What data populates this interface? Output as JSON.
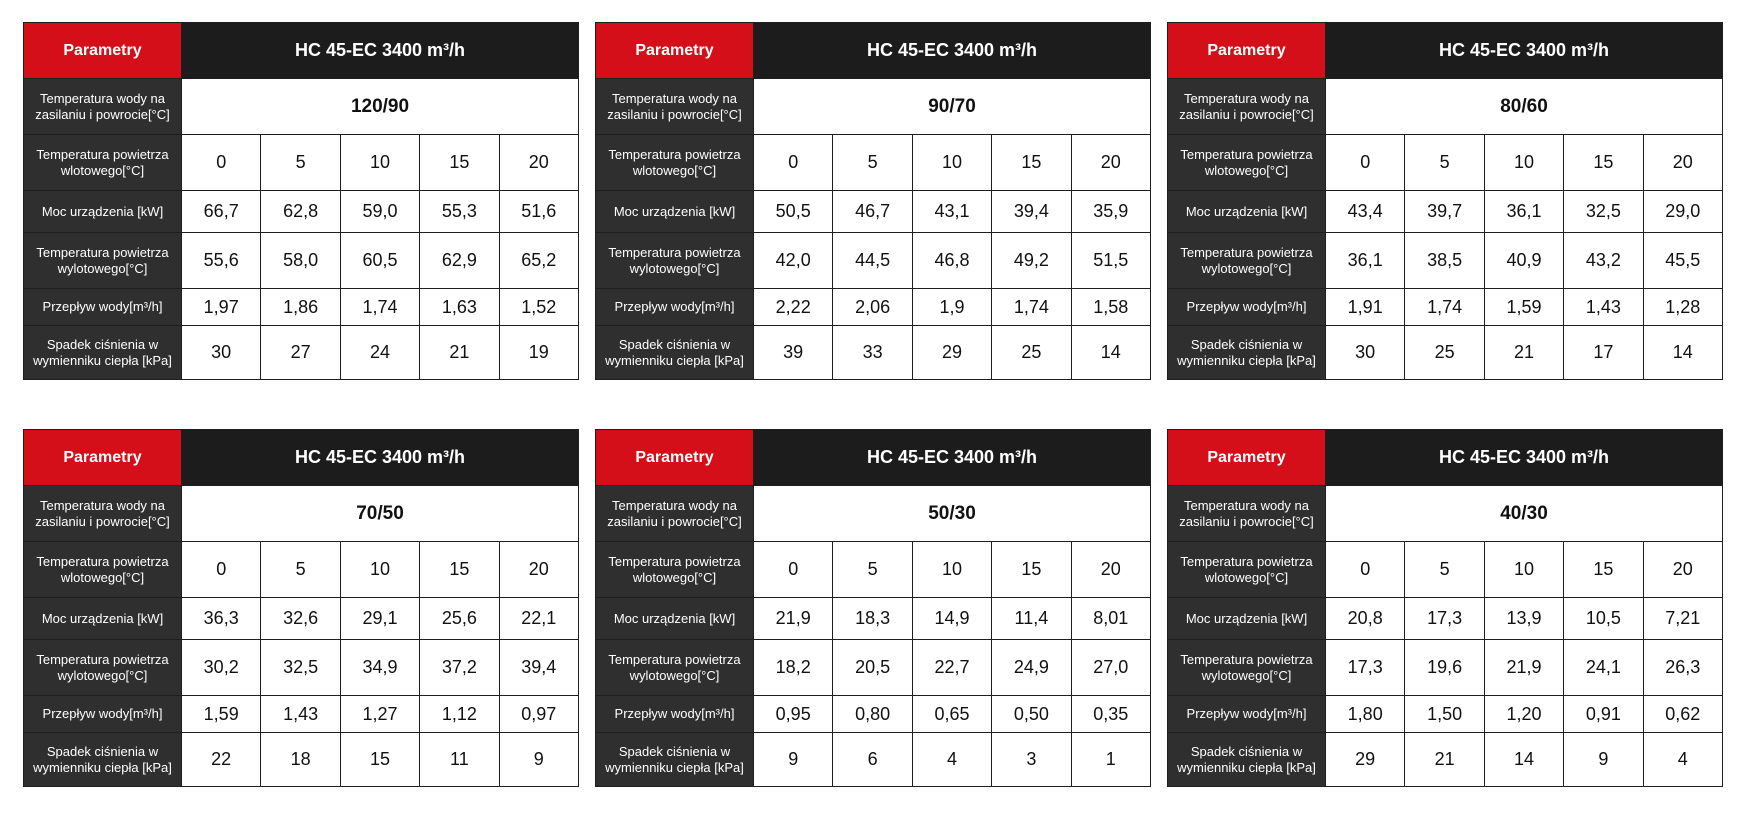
{
  "labels": {
    "params": "Parametry",
    "supply": "Temperatura wody na zasilaniu i powrocie[°C]",
    "inlet": "Temperatura powietrza wlotowego[°C]",
    "power": "Moc urządzenia [kW]",
    "outlet": "Temperatura powietrza wylotowego[°C]",
    "flow": "Przepływ wody[m³/h]",
    "pressure": "Spadek ciśnienia w wymienniku ciepła [kPa]"
  },
  "model": "HC 45-EC 3400 m³/h",
  "tables": [
    {
      "supply": "120/90",
      "inlet": [
        "0",
        "5",
        "10",
        "15",
        "20"
      ],
      "power": [
        "66,7",
        "62,8",
        "59,0",
        "55,3",
        "51,6"
      ],
      "outlet": [
        "55,6",
        "58,0",
        "60,5",
        "62,9",
        "65,2"
      ],
      "flow": [
        "1,97",
        "1,86",
        "1,74",
        "1,63",
        "1,52"
      ],
      "pressure": [
        "30",
        "27",
        "24",
        "21",
        "19"
      ]
    },
    {
      "supply": "90/70",
      "inlet": [
        "0",
        "5",
        "10",
        "15",
        "20"
      ],
      "power": [
        "50,5",
        "46,7",
        "43,1",
        "39,4",
        "35,9"
      ],
      "outlet": [
        "42,0",
        "44,5",
        "46,8",
        "49,2",
        "51,5"
      ],
      "flow": [
        "2,22",
        "2,06",
        "1,9",
        "1,74",
        "1,58"
      ],
      "pressure": [
        "39",
        "33",
        "29",
        "25",
        "14"
      ]
    },
    {
      "supply": "80/60",
      "inlet": [
        "0",
        "5",
        "10",
        "15",
        "20"
      ],
      "power": [
        "43,4",
        "39,7",
        "36,1",
        "32,5",
        "29,0"
      ],
      "outlet": [
        "36,1",
        "38,5",
        "40,9",
        "43,2",
        "45,5"
      ],
      "flow": [
        "1,91",
        "1,74",
        "1,59",
        "1,43",
        "1,28"
      ],
      "pressure": [
        "30",
        "25",
        "21",
        "17",
        "14"
      ]
    },
    {
      "supply": "70/50",
      "inlet": [
        "0",
        "5",
        "10",
        "15",
        "20"
      ],
      "power": [
        "36,3",
        "32,6",
        "29,1",
        "25,6",
        "22,1"
      ],
      "outlet": [
        "30,2",
        "32,5",
        "34,9",
        "37,2",
        "39,4"
      ],
      "flow": [
        "1,59",
        "1,43",
        "1,27",
        "1,12",
        "0,97"
      ],
      "pressure": [
        "22",
        "18",
        "15",
        "11",
        "9"
      ]
    },
    {
      "supply": "50/30",
      "inlet": [
        "0",
        "5",
        "10",
        "15",
        "20"
      ],
      "power": [
        "21,9",
        "18,3",
        "14,9",
        "11,4",
        "8,01"
      ],
      "outlet": [
        "18,2",
        "20,5",
        "22,7",
        "24,9",
        "27,0"
      ],
      "flow": [
        "0,95",
        "0,80",
        "0,65",
        "0,50",
        "0,35"
      ],
      "pressure": [
        "9",
        "6",
        "4",
        "3",
        "1"
      ]
    },
    {
      "supply": "40/30",
      "inlet": [
        "0",
        "5",
        "10",
        "15",
        "20"
      ],
      "power": [
        "20,8",
        "17,3",
        "13,9",
        "10,5",
        "7,21"
      ],
      "outlet": [
        "17,3",
        "19,6",
        "21,9",
        "24,1",
        "26,3"
      ],
      "flow": [
        "1,80",
        "1,50",
        "1,20",
        "0,91",
        "0,62"
      ],
      "pressure": [
        "29",
        "21",
        "14",
        "9",
        "4"
      ]
    }
  ],
  "colors": {
    "header_red": "#d40f1a",
    "header_black": "#1c1c1c",
    "label_bg": "#2f2f2f"
  }
}
